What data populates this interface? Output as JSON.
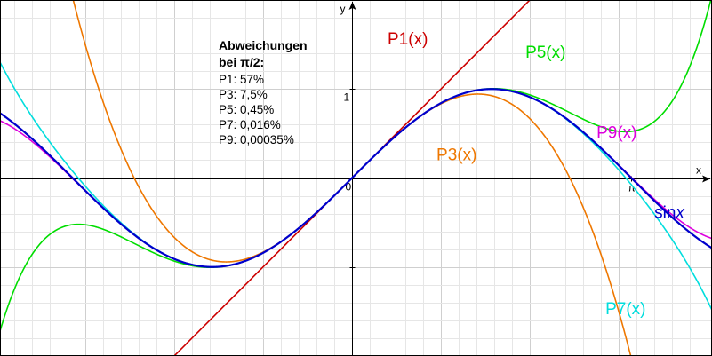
{
  "chart_data": {
    "type": "line",
    "xlabel": "x",
    "ylabel": "y",
    "xlim": [
      -3.9584,
      4.0485
    ],
    "ylim": [
      -2.0,
      2.0
    ],
    "grid": true,
    "origin_label": "0",
    "y_tick_labels": [
      {
        "value": 1,
        "label": "1"
      }
    ],
    "x_tick_labels": [
      {
        "value": 3.14159,
        "label": "π"
      }
    ],
    "annotation": {
      "title_lines": [
        "Abweichungen",
        "bei π/2:"
      ],
      "lines": [
        "P1: 57%",
        "P3: 7,5%",
        "P5: 0,45%",
        "P7: 0,016%",
        "P9: 0,00035%"
      ]
    },
    "series": [
      {
        "name": "P1(x)",
        "color": "#cc0000",
        "label_text": "P1(x)",
        "label_anchor": [
          0.4,
          1.5
        ],
        "coefficients": [
          0,
          1
        ]
      },
      {
        "name": "P3(x)",
        "color": "#ee7700",
        "label_text": "P3(x)",
        "label_anchor": [
          0.95,
          0.2
        ],
        "coefficients": [
          0,
          1,
          0,
          -0.1666667
        ]
      },
      {
        "name": "P5(x)",
        "color": "#00dd00",
        "label_text": "P5(x)",
        "label_anchor": [
          1.95,
          1.35
        ],
        "coefficients": [
          0,
          1,
          0,
          -0.1666667,
          0,
          0.0083333
        ]
      },
      {
        "name": "P7(x)",
        "color": "#00dddd",
        "label_text": "P7(x)",
        "label_anchor": [
          2.85,
          -1.53
        ],
        "coefficients": [
          0,
          1,
          0,
          -0.1666667,
          0,
          0.0083333,
          0,
          -0.000198413
        ]
      },
      {
        "name": "P9(x)",
        "color": "#dd00dd",
        "label_text": "P9(x)",
        "label_anchor": [
          2.75,
          0.45
        ],
        "coefficients": [
          0,
          1,
          0,
          -0.1666667,
          0,
          0.0083333,
          0,
          -0.000198413,
          0,
          2.7557e-06
        ]
      },
      {
        "name": "sin x",
        "color": "#0000cc",
        "label_parts": [
          "sin",
          "x"
        ],
        "label_anchor": [
          3.4,
          -0.45
        ],
        "function": "sin"
      }
    ]
  }
}
